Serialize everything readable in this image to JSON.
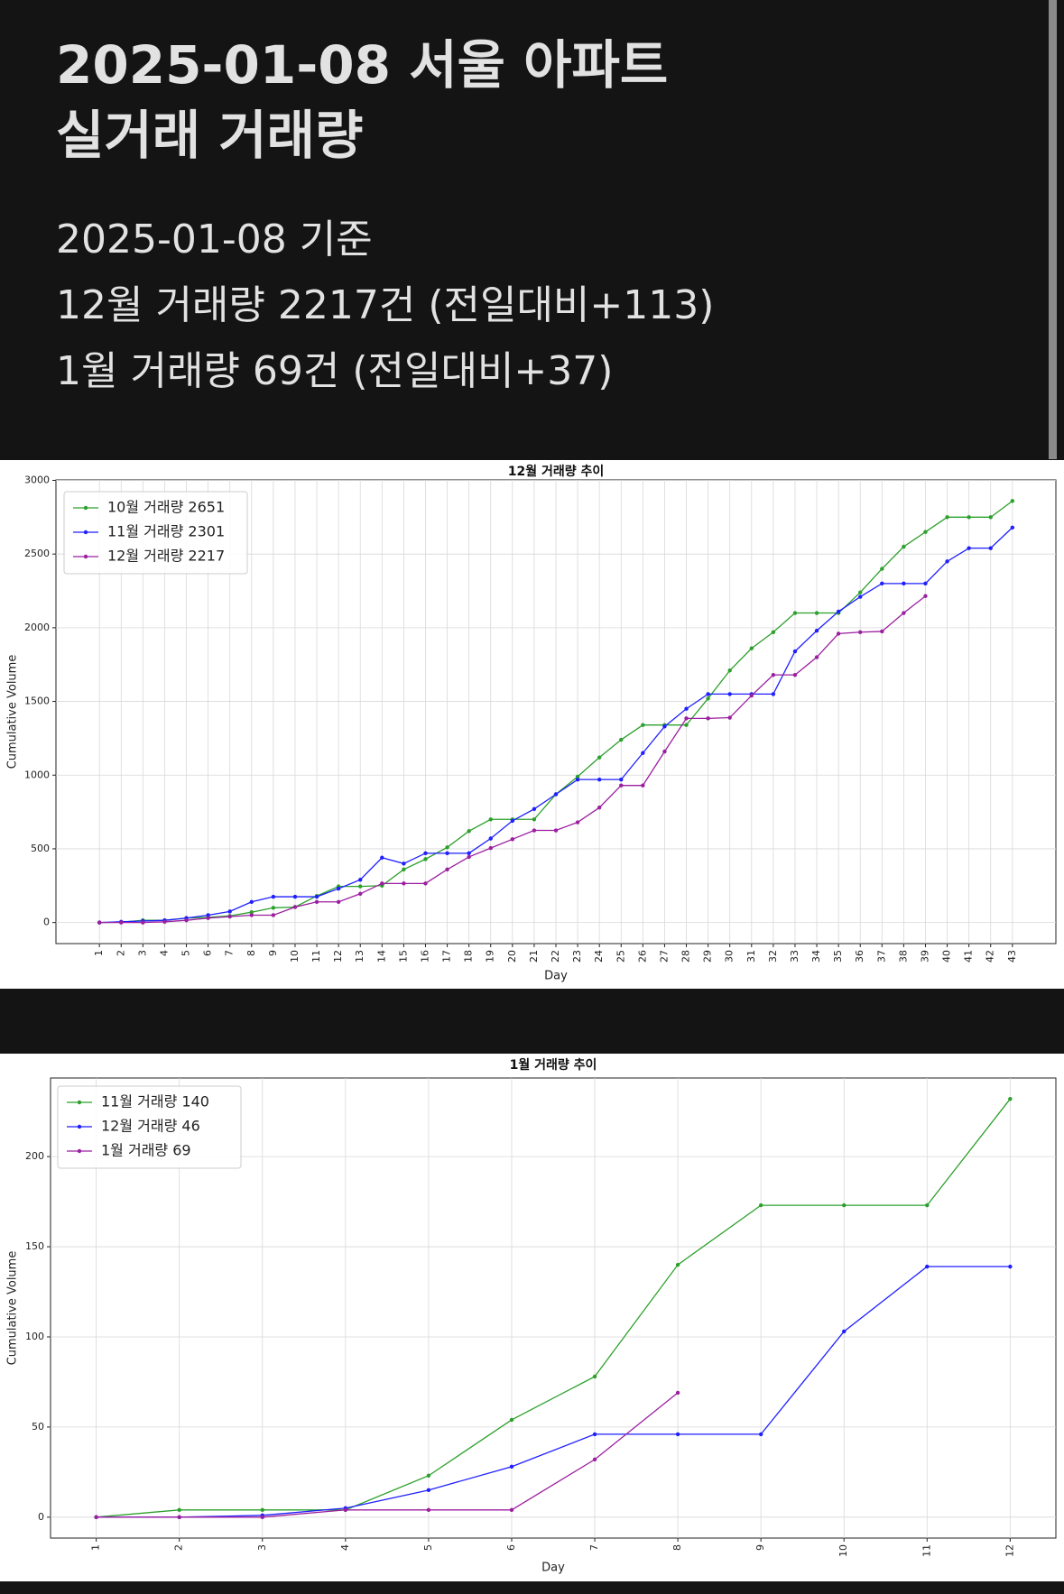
{
  "header": {
    "title_lines": [
      "2025-01-08 서울 아파트",
      "실거래 거래량"
    ],
    "lines": [
      "2025-01-08 기준",
      "12월 거래량 2217건 (전일대비+113)",
      "1월 거래량 69건 (전일대비+37)"
    ]
  },
  "chart_data": [
    {
      "type": "line",
      "title": "12월 거래량 추이",
      "xlabel": "Day",
      "ylabel": "Cumulative Volume",
      "x": [
        1,
        2,
        3,
        4,
        5,
        6,
        7,
        8,
        9,
        10,
        11,
        12,
        13,
        14,
        15,
        16,
        17,
        18,
        19,
        20,
        21,
        22,
        23,
        24,
        25,
        26,
        27,
        28,
        29,
        30,
        31,
        32,
        33,
        34,
        35,
        36,
        37,
        38,
        39,
        40,
        41,
        42,
        43
      ],
      "xlim": [
        -1,
        45
      ],
      "xticks": [
        1,
        2,
        3,
        4,
        5,
        6,
        7,
        8,
        9,
        10,
        11,
        12,
        13,
        14,
        15,
        16,
        17,
        18,
        19,
        20,
        21,
        22,
        23,
        24,
        25,
        26,
        27,
        28,
        29,
        30,
        31,
        32,
        33,
        34,
        35,
        36,
        37,
        38,
        39,
        40,
        41,
        42,
        43
      ],
      "ylim": [
        -143,
        3003
      ],
      "yticks": [
        0,
        500,
        1000,
        1500,
        2000,
        2500,
        3000
      ],
      "grid": true,
      "legend": "upper left",
      "series": [
        {
          "name": "10월 거래량 2651",
          "color": "#2ca02c",
          "values": [
            0,
            2,
            15,
            15,
            30,
            35,
            45,
            70,
            100,
            105,
            180,
            245,
            245,
            250,
            360,
            430,
            510,
            620,
            700,
            700,
            700,
            870,
            990,
            1120,
            1240,
            1340,
            1340,
            1340,
            1520,
            1710,
            1860,
            1970,
            2100,
            2100,
            2100,
            2240,
            2400,
            2550,
            2650,
            2750,
            2750,
            2750,
            2860
          ]
        },
        {
          "name": "11월 거래량 2301",
          "color": "#1f1fff",
          "values": [
            0,
            5,
            10,
            15,
            30,
            50,
            75,
            140,
            175,
            175,
            175,
            230,
            290,
            440,
            400,
            470,
            470,
            470,
            570,
            690,
            770,
            870,
            970,
            970,
            970,
            1150,
            1330,
            1450,
            1550,
            1550,
            1550,
            1550,
            1840,
            1980,
            2110,
            2210,
            2300,
            2300,
            2300,
            2450,
            2540,
            2540,
            2680
          ]
        },
        {
          "name": "12월 거래량 2217",
          "color": "#9b1fa0",
          "values": [
            0,
            0,
            0,
            5,
            15,
            30,
            40,
            50,
            50,
            105,
            140,
            140,
            195,
            265,
            265,
            265,
            360,
            445,
            505,
            565,
            625,
            625,
            680,
            780,
            930,
            930,
            1160,
            1385,
            1385,
            1390,
            1540,
            1680,
            1680,
            1800,
            1960,
            1970,
            1975,
            2100,
            2215,
            null,
            null,
            null,
            null
          ]
        }
      ]
    },
    {
      "type": "line",
      "title": "1월 거래량 추이",
      "xlabel": "Day",
      "ylabel": "Cumulative Volume",
      "x": [
        1,
        2,
        3,
        4,
        5,
        6,
        7,
        8,
        9,
        10,
        11,
        12
      ],
      "xlim": [
        0.45,
        12.55
      ],
      "xticks": [
        1,
        2,
        3,
        4,
        5,
        6,
        7,
        8,
        9,
        10,
        11,
        12
      ],
      "ylim": [
        -11.6,
        243.6
      ],
      "yticks": [
        0,
        50,
        100,
        150,
        200
      ],
      "grid": true,
      "legend": "upper left",
      "series": [
        {
          "name": "11월 거래량 140",
          "color": "#2ca02c",
          "values": [
            0,
            4,
            4,
            4,
            23,
            54,
            78,
            140,
            173,
            173,
            173,
            232
          ]
        },
        {
          "name": "12월 거래량 46",
          "color": "#1f1fff",
          "values": [
            0,
            0,
            1,
            5,
            15,
            28,
            46,
            46,
            46,
            103,
            139,
            139
          ]
        },
        {
          "name": "1월 거래량 69",
          "color": "#9b1fa0",
          "values": [
            0,
            0,
            0,
            4,
            4,
            4,
            32,
            69,
            null,
            null,
            null,
            null
          ]
        }
      ]
    }
  ]
}
